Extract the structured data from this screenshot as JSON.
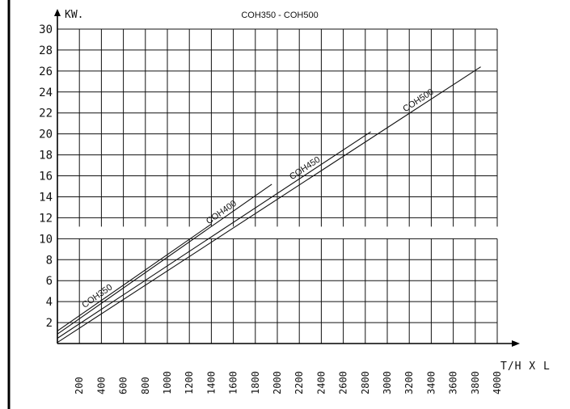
{
  "chart_data": {
    "type": "line",
    "title": "COH350 - COH500",
    "xlabel": "T/H X L",
    "ylabel": "KW.",
    "x_ticks": [
      "200",
      "400",
      "600",
      "800",
      "1000",
      "1200",
      "1400",
      "1600",
      "1800",
      "2000",
      "2200",
      "2400",
      "2600",
      "2800",
      "3000",
      "3200",
      "3400",
      "3600",
      "3800",
      "4000"
    ],
    "y_ticks": [
      "2",
      "4",
      "6",
      "8",
      "10",
      "12",
      "14",
      "16",
      "18",
      "20",
      "22",
      "24",
      "26",
      "28",
      "30"
    ],
    "xlim": [
      0,
      4000
    ],
    "ylim": [
      0,
      30
    ],
    "grid": true,
    "series": [
      {
        "name": "COH350",
        "x": [
          0,
          1400
        ],
        "y": [
          1.2,
          11.4
        ]
      },
      {
        "name": "COH400",
        "x": [
          0,
          1950
        ],
        "y": [
          0.9,
          15.2
        ]
      },
      {
        "name": "COH450",
        "x": [
          0,
          2850
        ],
        "y": [
          0.5,
          20.2
        ]
      },
      {
        "name": "COH500",
        "x": [
          0,
          3850
        ],
        "y": [
          0.1,
          26.4
        ]
      }
    ]
  }
}
